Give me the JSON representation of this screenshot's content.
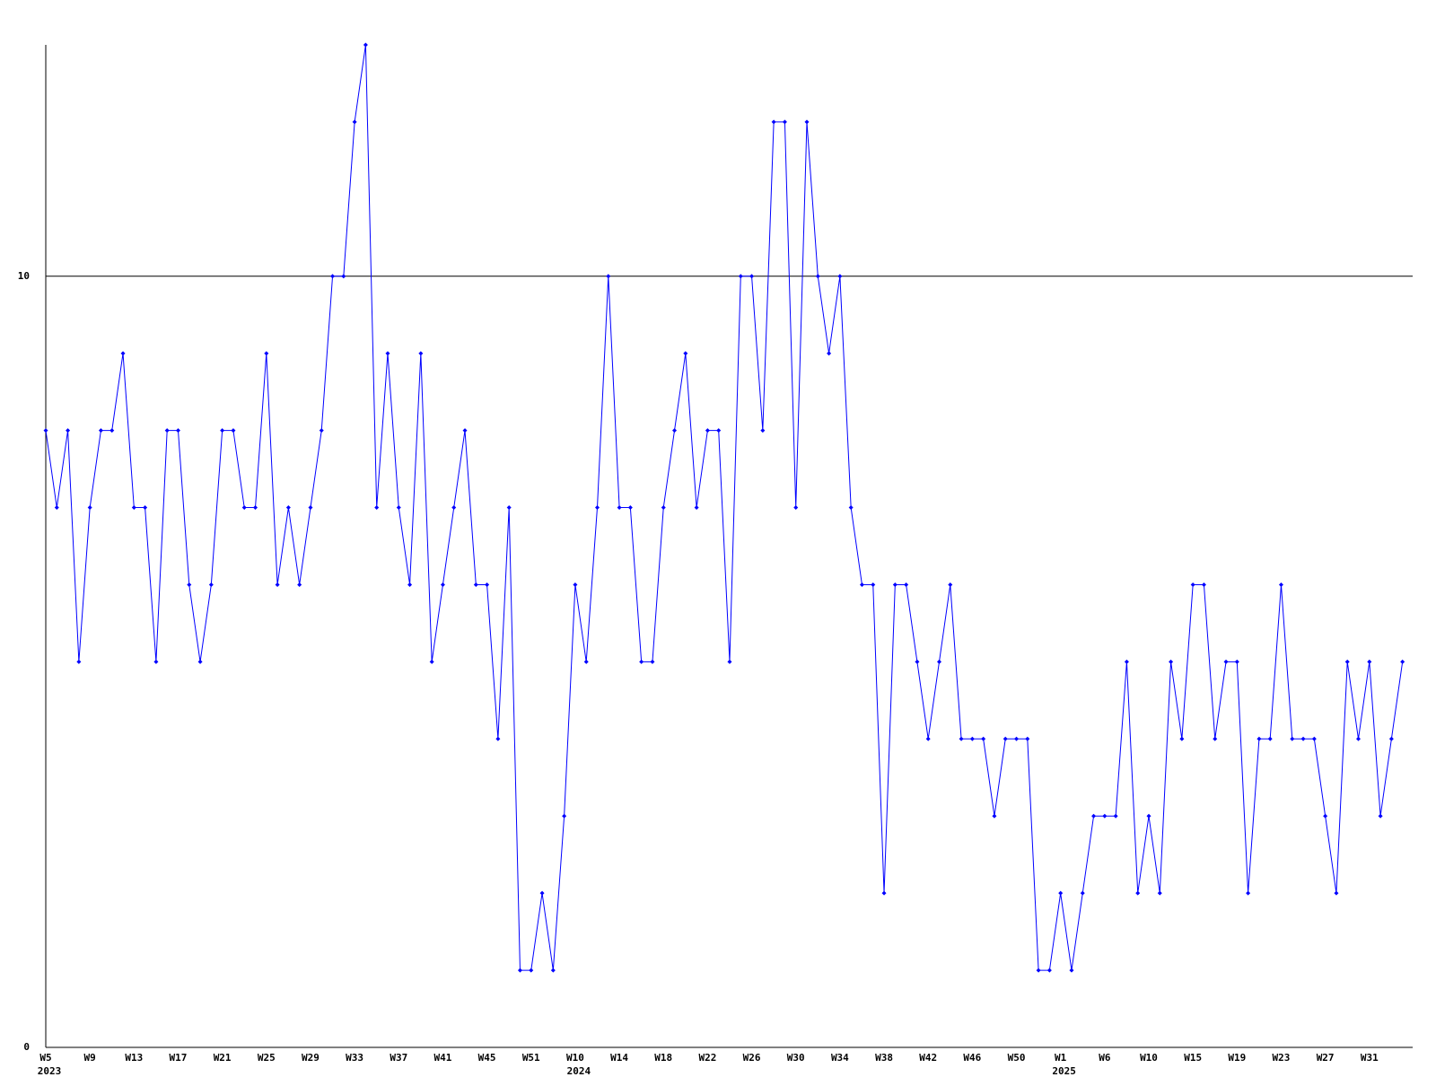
{
  "chart_data": {
    "type": "line",
    "categories": [
      "W5",
      null,
      null,
      null,
      "W9",
      null,
      null,
      null,
      "W13",
      null,
      null,
      null,
      "W17",
      null,
      null,
      null,
      "W21",
      null,
      null,
      null,
      "W25",
      null,
      null,
      null,
      "W29",
      null,
      null,
      null,
      "W33",
      null,
      null,
      null,
      "W37",
      null,
      null,
      null,
      "W41",
      null,
      null,
      null,
      "W45",
      null,
      null,
      null,
      "W51",
      null,
      null,
      null,
      "W10",
      null,
      null,
      null,
      "W14",
      null,
      null,
      null,
      "W18",
      null,
      null,
      null,
      "W22",
      null,
      null,
      null,
      "W26",
      null,
      null,
      null,
      "W30",
      null,
      null,
      null,
      "W34",
      null,
      null,
      null,
      "W38",
      null,
      null,
      null,
      "W42",
      null,
      null,
      null,
      "W46",
      null,
      null,
      null,
      "W50",
      null,
      null,
      null,
      "W1",
      null,
      null,
      null,
      "W6",
      null,
      null,
      null,
      "W10",
      null,
      null,
      null,
      "W15",
      null,
      null,
      null,
      "W19",
      null,
      null,
      null,
      "W23",
      null,
      null,
      null,
      "W27",
      null,
      null,
      null,
      "W31",
      null,
      null,
      null
    ],
    "category_years": [
      "2023",
      null,
      null,
      null,
      null,
      null,
      null,
      null,
      null,
      null,
      null,
      null,
      null,
      null,
      null,
      null,
      null,
      null,
      null,
      null,
      null,
      null,
      null,
      null,
      null,
      null,
      null,
      null,
      null,
      null,
      null,
      null,
      null,
      null,
      null,
      null,
      null,
      null,
      null,
      null,
      null,
      null,
      null,
      null,
      null,
      null,
      null,
      null,
      "2024",
      null,
      null,
      null,
      null,
      null,
      null,
      null,
      null,
      null,
      null,
      null,
      null,
      null,
      null,
      null,
      null,
      null,
      null,
      null,
      null,
      null,
      null,
      null,
      null,
      null,
      null,
      null,
      null,
      null,
      null,
      null,
      null,
      null,
      null,
      null,
      null,
      null,
      null,
      null,
      null,
      null,
      null,
      null,
      "2025",
      null,
      null,
      null,
      null,
      null,
      null,
      null,
      null,
      null,
      null,
      null,
      null,
      null,
      null,
      null,
      null,
      null,
      null,
      null,
      null,
      null,
      null,
      null,
      null,
      null,
      null,
      null,
      null,
      null,
      null,
      null
    ],
    "values": [
      8,
      7,
      8,
      5,
      7,
      8,
      8,
      9,
      7,
      7,
      5,
      8,
      8,
      6,
      5,
      6,
      8,
      8,
      7,
      7,
      9,
      6,
      7,
      6,
      7,
      8,
      10,
      10,
      12,
      13,
      7,
      9,
      7,
      6,
      9,
      5,
      6,
      7,
      8,
      6,
      6,
      4,
      7,
      1,
      1,
      2,
      1,
      3,
      6,
      5,
      7,
      10,
      7,
      7,
      5,
      5,
      7,
      8,
      9,
      7,
      8,
      8,
      5,
      10,
      10,
      8,
      12,
      12,
      7,
      12,
      10,
      9,
      10,
      7,
      6,
      6,
      2,
      6,
      6,
      5,
      4,
      5,
      6,
      4,
      4,
      4,
      3,
      4,
      4,
      4,
      1,
      1,
      2,
      1,
      2,
      3,
      3,
      3,
      5,
      2,
      3,
      2,
      5,
      4,
      6,
      6,
      4,
      5,
      5,
      2,
      4,
      4,
      6,
      4,
      4,
      4,
      3,
      2,
      5,
      4,
      5,
      3,
      4,
      5
    ],
    "color": "#0000ff",
    "ylim": [
      0,
      13
    ],
    "yticks": [
      0,
      10
    ],
    "grid": true
  }
}
